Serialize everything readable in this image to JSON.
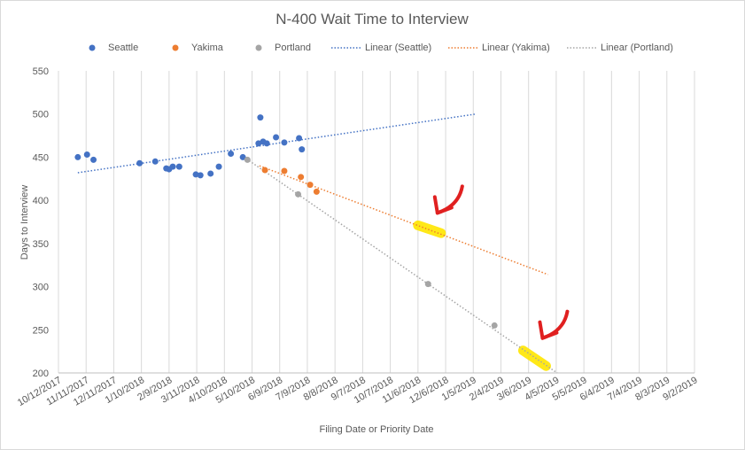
{
  "chart_data": {
    "type": "scatter",
    "title": "N-400 Wait Time to Interview",
    "xlabel": "Filing Date or Priority Date",
    "ylabel": "Days to Interview",
    "ylim": [
      200,
      550
    ],
    "yticks": [
      200,
      250,
      300,
      350,
      400,
      450,
      500,
      550
    ],
    "xlim": [
      "2017-10-12",
      "2019-09-02"
    ],
    "xticks": [
      "2017-10-12",
      "2017-11-11",
      "2017-12-11",
      "2018-01-10",
      "2018-02-09",
      "2018-03-11",
      "2018-04-10",
      "2018-05-10",
      "2018-06-09",
      "2018-07-09",
      "2018-08-08",
      "2018-09-07",
      "2018-10-07",
      "2018-11-06",
      "2018-12-06",
      "2019-01-05",
      "2019-02-04",
      "2019-03-06",
      "2019-04-05",
      "2019-05-05",
      "2019-06-04",
      "2019-07-04",
      "2019-08-03",
      "2019-09-02"
    ],
    "xtick_labels": [
      "10/12/2017",
      "11/11/2017",
      "12/11/2017",
      "1/10/2018",
      "2/9/2018",
      "3/11/2018",
      "4/10/2018",
      "5/10/2018",
      "6/9/2018",
      "7/9/2018",
      "8/8/2018",
      "9/7/2018",
      "10/7/2018",
      "11/6/2018",
      "12/6/2018",
      "1/5/2019",
      "2/4/2019",
      "3/6/2019",
      "4/5/2019",
      "5/5/2019",
      "6/4/2019",
      "7/4/2019",
      "8/3/2019",
      "9/2/2019"
    ],
    "grid": "vertical",
    "legend_position": "top",
    "series": [
      {
        "name": "Seattle",
        "color": "#4472c4",
        "points": [
          [
            "2017-11-02",
            450
          ],
          [
            "2017-11-12",
            453
          ],
          [
            "2017-11-19",
            447
          ],
          [
            "2018-01-08",
            443
          ],
          [
            "2018-01-25",
            445
          ],
          [
            "2018-02-06",
            437
          ],
          [
            "2018-02-09",
            436
          ],
          [
            "2018-02-13",
            439
          ],
          [
            "2018-02-20",
            439
          ],
          [
            "2018-03-10",
            430
          ],
          [
            "2018-03-15",
            429
          ],
          [
            "2018-03-26",
            431
          ],
          [
            "2018-04-04",
            439
          ],
          [
            "2018-04-17",
            454
          ],
          [
            "2018-04-30",
            450
          ],
          [
            "2018-05-17",
            466
          ],
          [
            "2018-05-19",
            496
          ],
          [
            "2018-05-22",
            468
          ],
          [
            "2018-05-26",
            466
          ],
          [
            "2018-06-05",
            473
          ],
          [
            "2018-06-14",
            467
          ],
          [
            "2018-06-30",
            472
          ],
          [
            "2018-07-03",
            459
          ]
        ]
      },
      {
        "name": "Yakima",
        "color": "#ed7d31",
        "points": [
          [
            "2018-05-24",
            435
          ],
          [
            "2018-06-14",
            434
          ],
          [
            "2018-07-02",
            427
          ],
          [
            "2018-07-12",
            418
          ],
          [
            "2018-07-19",
            410
          ]
        ]
      },
      {
        "name": "Portland",
        "color": "#a5a5a5",
        "points": [
          [
            "2018-05-05",
            447
          ],
          [
            "2018-06-29",
            407
          ],
          [
            "2018-11-17",
            303
          ],
          [
            "2019-01-28",
            255
          ]
        ]
      }
    ],
    "trendlines": [
      {
        "name": "Linear (Seattle)",
        "color": "#4472c4",
        "from": [
          "2017-11-02",
          432
        ],
        "to": [
          "2019-01-08",
          500
        ]
      },
      {
        "name": "Linear (Yakima)",
        "color": "#ed7d31",
        "from": [
          "2018-05-18",
          440
        ],
        "to": [
          "2019-03-27",
          314
        ]
      },
      {
        "name": "Linear (Portland)",
        "color": "#a5a5a5",
        "from": [
          "2018-05-04",
          448
        ],
        "to": [
          "2019-04-06",
          200
        ]
      }
    ],
    "annotations": [
      {
        "type": "highlight",
        "color": "#ffe600",
        "on": "Linear (Yakima)",
        "from": [
          "2018-11-06",
          371
        ],
        "to": [
          "2018-12-01",
          362
        ]
      },
      {
        "type": "highlight",
        "color": "#ffe600",
        "on": "Linear (Portland)",
        "from": [
          "2019-02-28",
          226
        ],
        "to": [
          "2019-03-25",
          208
        ]
      },
      {
        "type": "arrow",
        "color": "#e02020",
        "target": "Linear (Yakima) highlight"
      },
      {
        "type": "arrow",
        "color": "#e02020",
        "target": "Linear (Portland) highlight"
      }
    ]
  }
}
